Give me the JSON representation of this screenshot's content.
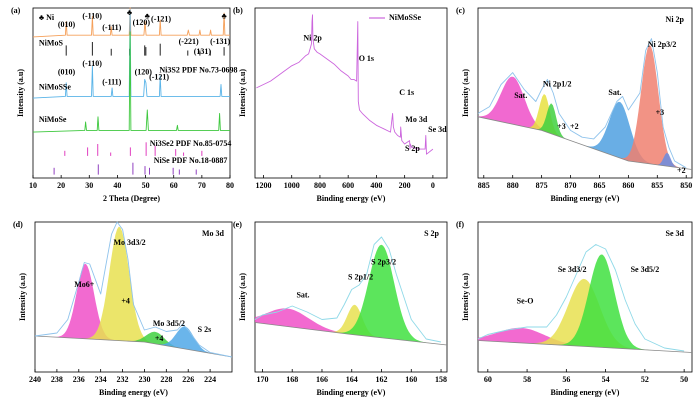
{
  "chart_data": [
    {
      "type": "xrd",
      "panel": "(a)",
      "xlabel": "2 Theta (Degree)",
      "ylabel": "Intensity (a.u)",
      "xlim": [
        10,
        80
      ],
      "xticks": [
        10,
        20,
        30,
        40,
        50,
        60,
        70,
        80
      ],
      "ylim": [
        0,
        100
      ],
      "series": [
        {
          "name": "NiMoS",
          "color": "#f5a05a",
          "x": [
            10,
            21.5,
            21.8,
            22.1,
            30.8,
            31.1,
            31.4,
            37.5,
            37.8,
            38.1,
            44.2,
            44.5,
            44.8,
            49.4,
            49.8,
            50.2,
            54.9,
            55.2,
            55.5,
            64.8,
            65.2,
            65.6,
            69,
            69.3,
            69.6,
            72.8,
            73.1,
            73.4,
            77.6,
            77.9,
            78.2,
            80
          ],
          "values": [
            83,
            84,
            92,
            84,
            84,
            95,
            84,
            84,
            89,
            84,
            84,
            100,
            84,
            84,
            92,
            84,
            84,
            93,
            84,
            84,
            87,
            84,
            84,
            87,
            84,
            84,
            87,
            84,
            84,
            97,
            84,
            84
          ]
        },
        {
          "name": "NiMoSSe",
          "color": "#5ab4e8",
          "x": [
            10,
            21.5,
            21.8,
            22.1,
            30.8,
            31.1,
            31.4,
            37.8,
            38.1,
            38.4,
            44.2,
            44.5,
            44.8,
            49.3,
            49.7,
            50.1,
            50.5,
            54.9,
            55.2,
            55.5,
            76.5,
            76.8,
            77.1,
            80
          ],
          "values": [
            47,
            48,
            56,
            48,
            48,
            66,
            48,
            48,
            53,
            48,
            48,
            99,
            48,
            48,
            58,
            56,
            48,
            48,
            60,
            48,
            48,
            55,
            48,
            48
          ]
        },
        {
          "name": "NiMoSe",
          "color": "#3ec83e",
          "x": [
            10,
            28.4,
            28.7,
            29,
            32.8,
            33.1,
            33.4,
            44.2,
            44.5,
            44.8,
            50.2,
            50.6,
            51,
            61,
            61.3,
            61.6,
            76,
            76.3,
            76.6,
            80
          ],
          "values": [
            27,
            28,
            33,
            28,
            28,
            36,
            28,
            28,
            86,
            28,
            28,
            40,
            28,
            28,
            31,
            28,
            28,
            38,
            28,
            28
          ]
        }
      ],
      "references": [
        {
          "color": "#222222",
          "base": 72,
          "positions": [
            21.8,
            31.1,
            37.8,
            44.3,
            49.7,
            50.1,
            55.2,
            65,
            69.3,
            73,
            77.9
          ],
          "tops": [
            78,
            80,
            76,
            76,
            78,
            77,
            79,
            75,
            75,
            75,
            77
          ]
        },
        {
          "color": "#e040c0",
          "base": 13,
          "positions": [
            21.3,
            29.4,
            33,
            37.6,
            44.6,
            50.2,
            53.4,
            60.7,
            63.5,
            70
          ],
          "tops": [
            16,
            18,
            20,
            15,
            18,
            21,
            19,
            17,
            15,
            16
          ]
        },
        {
          "color": "#9040c0",
          "base": 2,
          "positions": [
            17.5,
            33.2,
            45.5,
            49.8,
            51.4,
            59.8,
            62,
            68
          ],
          "tops": [
            6,
            8,
            9,
            7,
            6,
            6,
            5,
            5
          ]
        }
      ],
      "annotations": [
        {
          "text": "♣ Ni"
        },
        {
          "text": "♣"
        },
        {
          "text": "♣"
        },
        {
          "text": "♣"
        },
        {
          "text": "(010)"
        },
        {
          "text": "(-110)"
        },
        {
          "text": "(-111)"
        },
        {
          "text": "(120)"
        },
        {
          "text": "(-121)"
        },
        {
          "text": "(-221)"
        },
        {
          "text": "(131)"
        },
        {
          "text": "(-131)"
        },
        {
          "text": "Ni3S2  PDF No.73-0698"
        },
        {
          "text": "(010)"
        },
        {
          "text": "(-110)"
        },
        {
          "text": "(-111)"
        },
        {
          "text": "(120)"
        },
        {
          "text": "(-121)"
        },
        {
          "text": "Ni3Se2  PDF No.85-0754",
          "color": "#e040c0"
        },
        {
          "text": "NiSe  PDF No.18-0887",
          "color": "#9040c0"
        }
      ]
    },
    {
      "type": "line",
      "panel": "(b)",
      "xlabel": "Binding energy (eV)",
      "ylabel": "Intensity (a.u)",
      "xlim": [
        1260,
        -100
      ],
      "xticks": [
        1200,
        1000,
        800,
        600,
        400,
        200,
        0
      ],
      "ylim": [
        0,
        100
      ],
      "legend": "upper right",
      "x": [
        1250,
        1200,
        1150,
        1100,
        1050,
        1000,
        950,
        900,
        880,
        870,
        860,
        856,
        853,
        850,
        840,
        820,
        800,
        750,
        700,
        650,
        600,
        580,
        560,
        540,
        532,
        528,
        520,
        500,
        450,
        400,
        350,
        300,
        285,
        280,
        270,
        250,
        230,
        228,
        220,
        200,
        165,
        162,
        160,
        150,
        100,
        55,
        50,
        45,
        0
      ],
      "series": [
        {
          "name": "NiMoSSe",
          "color": "#cc66dd",
          "values": [
            53,
            55,
            57,
            60,
            63,
            66,
            68,
            72,
            73,
            76,
            79,
            92,
            96,
            82,
            76,
            74,
            73,
            70,
            67,
            63,
            60,
            58,
            58,
            57,
            92,
            45,
            40,
            38,
            34,
            31,
            29,
            27,
            38,
            30,
            27,
            25,
            24,
            30,
            22,
            20,
            22,
            17,
            20,
            18,
            17,
            17,
            25,
            14,
            17
          ]
        }
      ],
      "annotations": [
        {
          "text": "Ni 2p"
        },
        {
          "text": "O 1s"
        },
        {
          "text": "C 1s"
        },
        {
          "text": "Mo 3d"
        },
        {
          "text": "Se 3d"
        },
        {
          "text": "S 2p"
        }
      ]
    },
    {
      "type": "xps",
      "panel": "(c)",
      "title": "Ni 2p",
      "xlabel": "Binding energy (eV)",
      "ylabel": "Intensity (a.u)",
      "xlim": [
        886,
        849
      ],
      "xticks": [
        885,
        880,
        875,
        870,
        865,
        860,
        855,
        850
      ],
      "ylim": [
        0,
        100
      ],
      "x": [
        886,
        884,
        882,
        880,
        878,
        876,
        875,
        874,
        873,
        872,
        870,
        868,
        866,
        864,
        862,
        861,
        860,
        858,
        857,
        856,
        855,
        854,
        853,
        852,
        850
      ],
      "series": [
        {
          "color": "#8fc3ec",
          "values": [
            38,
            42,
            55,
            62,
            52,
            45,
            52,
            58,
            50,
            38,
            28,
            24,
            23,
            30,
            45,
            48,
            40,
            50,
            75,
            82,
            62,
            30,
            18,
            10,
            6
          ]
        }
      ],
      "baseline": {
        "x": [
          886,
          875,
          860,
          849
        ],
        "values": [
          36,
          28,
          10,
          5
        ]
      },
      "peaks": [
        {
          "color": "#ef4fc8",
          "center": 880,
          "height": 28,
          "width": 2.0
        },
        {
          "color": "#e8e040",
          "center": 874.5,
          "height": 22,
          "width": 0.9
        },
        {
          "color": "#40d040",
          "center": 873.3,
          "height": 18,
          "width": 0.8
        },
        {
          "color": "#4fa0e0",
          "center": 861.5,
          "height": 33,
          "width": 1.8
        },
        {
          "color": "#f08070",
          "center": 856.3,
          "height": 70,
          "width": 1.5
        },
        {
          "color": "#6a8ce0",
          "center": 853.3,
          "height": 8,
          "width": 0.6
        }
      ],
      "annotations": [
        {
          "text": "Sat."
        },
        {
          "text": "Ni 2p1/2"
        },
        {
          "text": "+3"
        },
        {
          "text": "+2"
        },
        {
          "text": "Sat."
        },
        {
          "text": "Ni 2p3/2"
        },
        {
          "text": "+3"
        },
        {
          "text": "+2"
        }
      ]
    },
    {
      "type": "xps",
      "panel": "(d)",
      "title": "Mo 3d",
      "xlabel": "Binding energy (eV)",
      "ylabel": "Intensity (a.u)",
      "xlim": [
        240,
        222
      ],
      "xticks": [
        240,
        238,
        236,
        234,
        232,
        230,
        228,
        226,
        224
      ],
      "ylim": [
        0,
        100
      ],
      "x": [
        240,
        238,
        237,
        236,
        235.5,
        235,
        234,
        233.5,
        233,
        232.5,
        232,
        231.5,
        231,
        230,
        229,
        228,
        227,
        226.5,
        226,
        225,
        224,
        222
      ],
      "series": [
        {
          "color": "#8fc3ec",
          "values": [
            24,
            26,
            35,
            60,
            73,
            72,
            52,
            72,
            92,
            100,
            95,
            75,
            45,
            28,
            30,
            27,
            28,
            32,
            28,
            18,
            13,
            10
          ]
        }
      ],
      "baseline": {
        "x": [
          240,
          230,
          222
        ],
        "values": [
          24,
          20,
          10
        ]
      },
      "peaks": [
        {
          "color": "#f050c8",
          "center": 235.4,
          "height": 50,
          "width": 0.8
        },
        {
          "color": "#e8e050",
          "center": 232.3,
          "height": 76,
          "width": 0.9
        },
        {
          "color": "#40d040",
          "center": 229,
          "height": 8,
          "width": 0.8
        },
        {
          "color": "#50a8e8",
          "center": 226.3,
          "height": 15,
          "width": 0.8
        }
      ],
      "annotations": [
        {
          "text": "Mo6+"
        },
        {
          "text": "Mo 3d3/2"
        },
        {
          "text": "+4"
        },
        {
          "text": "Mo 3d5/2"
        },
        {
          "text": "+4"
        },
        {
          "text": "S 2s"
        }
      ]
    },
    {
      "type": "xps",
      "panel": "(e)",
      "title": "S 2p",
      "xlabel": "Binding energy (eV)",
      "ylabel": "Intensity (a.u)",
      "xlim": [
        170.5,
        157.6
      ],
      "xticks": [
        170,
        168,
        166,
        164,
        162,
        160,
        158
      ],
      "ylim": [
        0,
        100
      ],
      "x": [
        170.5,
        170,
        169,
        168,
        167,
        166,
        165,
        164.5,
        164,
        163.5,
        163,
        162.5,
        162,
        161.5,
        161,
        160,
        159,
        158
      ],
      "series": [
        {
          "color": "#8fd9e8",
          "values": [
            35,
            38,
            40,
            44,
            40,
            35,
            36,
            45,
            55,
            58,
            65,
            85,
            90,
            82,
            65,
            35,
            22,
            20
          ]
        }
      ],
      "baseline": {
        "x": [
          170.5,
          164,
          157.6
        ],
        "values": [
          33,
          25,
          18
        ]
      },
      "peaks": [
        {
          "color": "#f050c8",
          "center": 168.3,
          "height": 12,
          "width": 1.4
        },
        {
          "color": "#e8e050",
          "center": 163.8,
          "height": 20,
          "width": 0.5
        },
        {
          "color": "#40e040",
          "center": 162,
          "height": 62,
          "width": 0.85
        }
      ],
      "annotations": [
        {
          "text": "Sat."
        },
        {
          "text": "S 2p1/2"
        },
        {
          "text": "S 2p3/2"
        }
      ]
    },
    {
      "type": "xps",
      "panel": "(f)",
      "title": "Se 3d",
      "xlabel": "Binding energy (eV)",
      "ylabel": "Intensity (a.u)",
      "xlim": [
        60.5,
        49.6
      ],
      "xticks": [
        60,
        58,
        56,
        54,
        52,
        50
      ],
      "ylim": [
        0,
        100
      ],
      "x": [
        60.5,
        60,
        59,
        58,
        57,
        56.5,
        56,
        55.5,
        55,
        54.5,
        54,
        53.5,
        53,
        52.5,
        52,
        51,
        50
      ],
      "series": [
        {
          "color": "#8fd9e8",
          "values": [
            22,
            25,
            28,
            30,
            30,
            38,
            50,
            65,
            80,
            85,
            82,
            68,
            48,
            32,
            22,
            16,
            14
          ]
        }
      ],
      "baseline": {
        "x": [
          60.5,
          55,
          49.6
        ],
        "values": [
          21,
          17,
          13
        ]
      },
      "peaks": [
        {
          "color": "#f050c8",
          "center": 58.3,
          "height": 10,
          "width": 1.2
        },
        {
          "color": "#e8e050",
          "center": 55.1,
          "height": 45,
          "width": 0.8
        },
        {
          "color": "#40e040",
          "center": 54.2,
          "height": 62,
          "width": 0.65
        }
      ],
      "annotations": [
        {
          "text": "Se-O"
        },
        {
          "text": "Se 3d3/2"
        },
        {
          "text": "Se 3d5/2"
        }
      ]
    }
  ]
}
